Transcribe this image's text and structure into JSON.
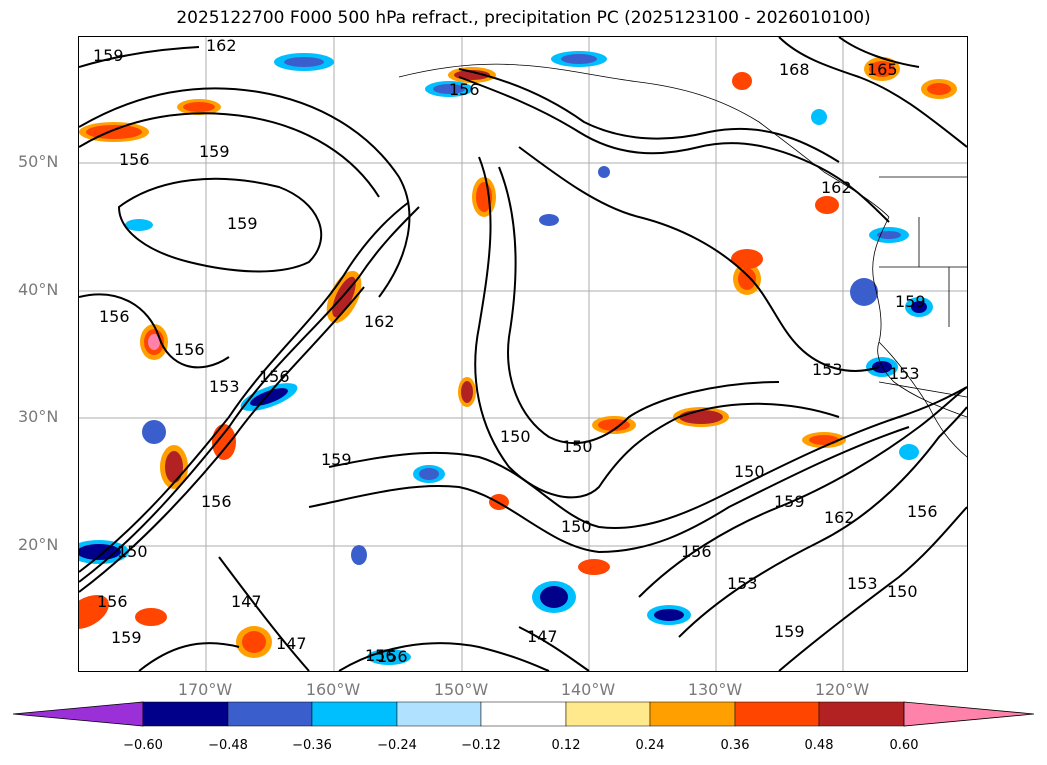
{
  "title": "2025122700 F000 500 hPa refract., precipitation PC (2025123100 - 2026010100)",
  "axes": {
    "lat_labels": [
      "50°N",
      "40°N",
      "30°N",
      "20°N"
    ],
    "lon_labels": [
      "170°W",
      "160°W",
      "150°W",
      "140°W",
      "130°W",
      "120°W"
    ]
  },
  "colorbar": {
    "ticks": [
      "−0.60",
      "−0.48",
      "−0.36",
      "−0.24",
      "−0.12",
      "0.12",
      "0.24",
      "0.36",
      "0.48",
      "0.60"
    ],
    "colors": [
      "#9b30d9",
      "#00008b",
      "#3a5fcd",
      "#00bfff",
      "#b0e2ff",
      "#ffffff",
      "#ffe98c",
      "#ffa000",
      "#ff4500",
      "#b22222",
      "#ff82ab"
    ]
  },
  "contour_labels": [
    "159",
    "162",
    "156",
    "159",
    "156",
    "159",
    "156",
    "156",
    "153",
    "162",
    "156",
    "159",
    "156",
    "150",
    "156",
    "159",
    "147",
    "147",
    "156",
    "147",
    "150",
    "150",
    "156",
    "153",
    "159",
    "150",
    "159",
    "162",
    "153",
    "150",
    "168",
    "165",
    "162",
    "159",
    "153",
    "153",
    "156",
    "150",
    "156"
  ]
}
